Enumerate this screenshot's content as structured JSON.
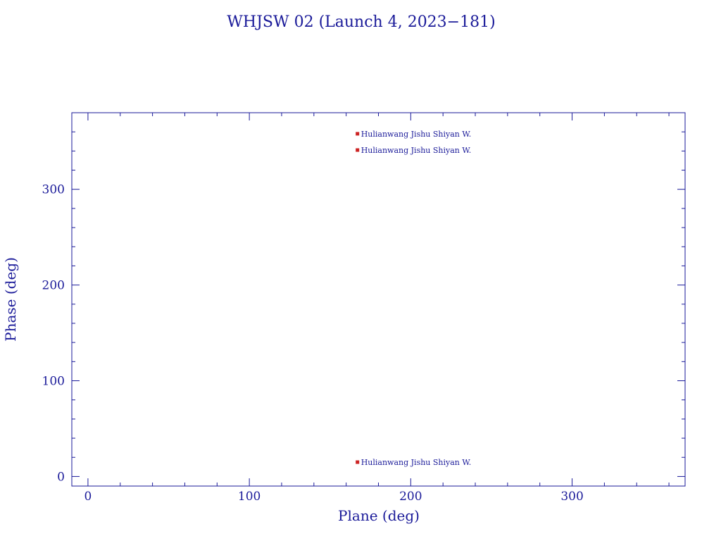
{
  "chart_data": {
    "type": "scatter",
    "title": "WHJSW 02 (Launch 4, 2023−181)",
    "xlabel": "Plane (deg)",
    "ylabel": "Phase (deg)",
    "xlim": [
      -10,
      370
    ],
    "ylim": [
      -10,
      380
    ],
    "xticks": [
      0,
      100,
      200,
      300
    ],
    "yticks": [
      0,
      100,
      200,
      300
    ],
    "x_minor_step": 20,
    "y_minor_step": 20,
    "grid": false,
    "legend": "none",
    "series": [
      {
        "points": [
          {
            "x": 167,
            "y": 358,
            "label": "Hulianwang Jishu Shiyan W."
          },
          {
            "x": 167,
            "y": 341,
            "label": "Hulianwang Jishu Shiyan W."
          },
          {
            "x": 167,
            "y": 15,
            "label": "Hulianwang Jishu Shiyan W."
          }
        ]
      }
    ],
    "colors": {
      "axis": "#1a1a99",
      "text": "#1a1a99",
      "marker": "#cc2222",
      "label": "#1a1a99"
    }
  }
}
